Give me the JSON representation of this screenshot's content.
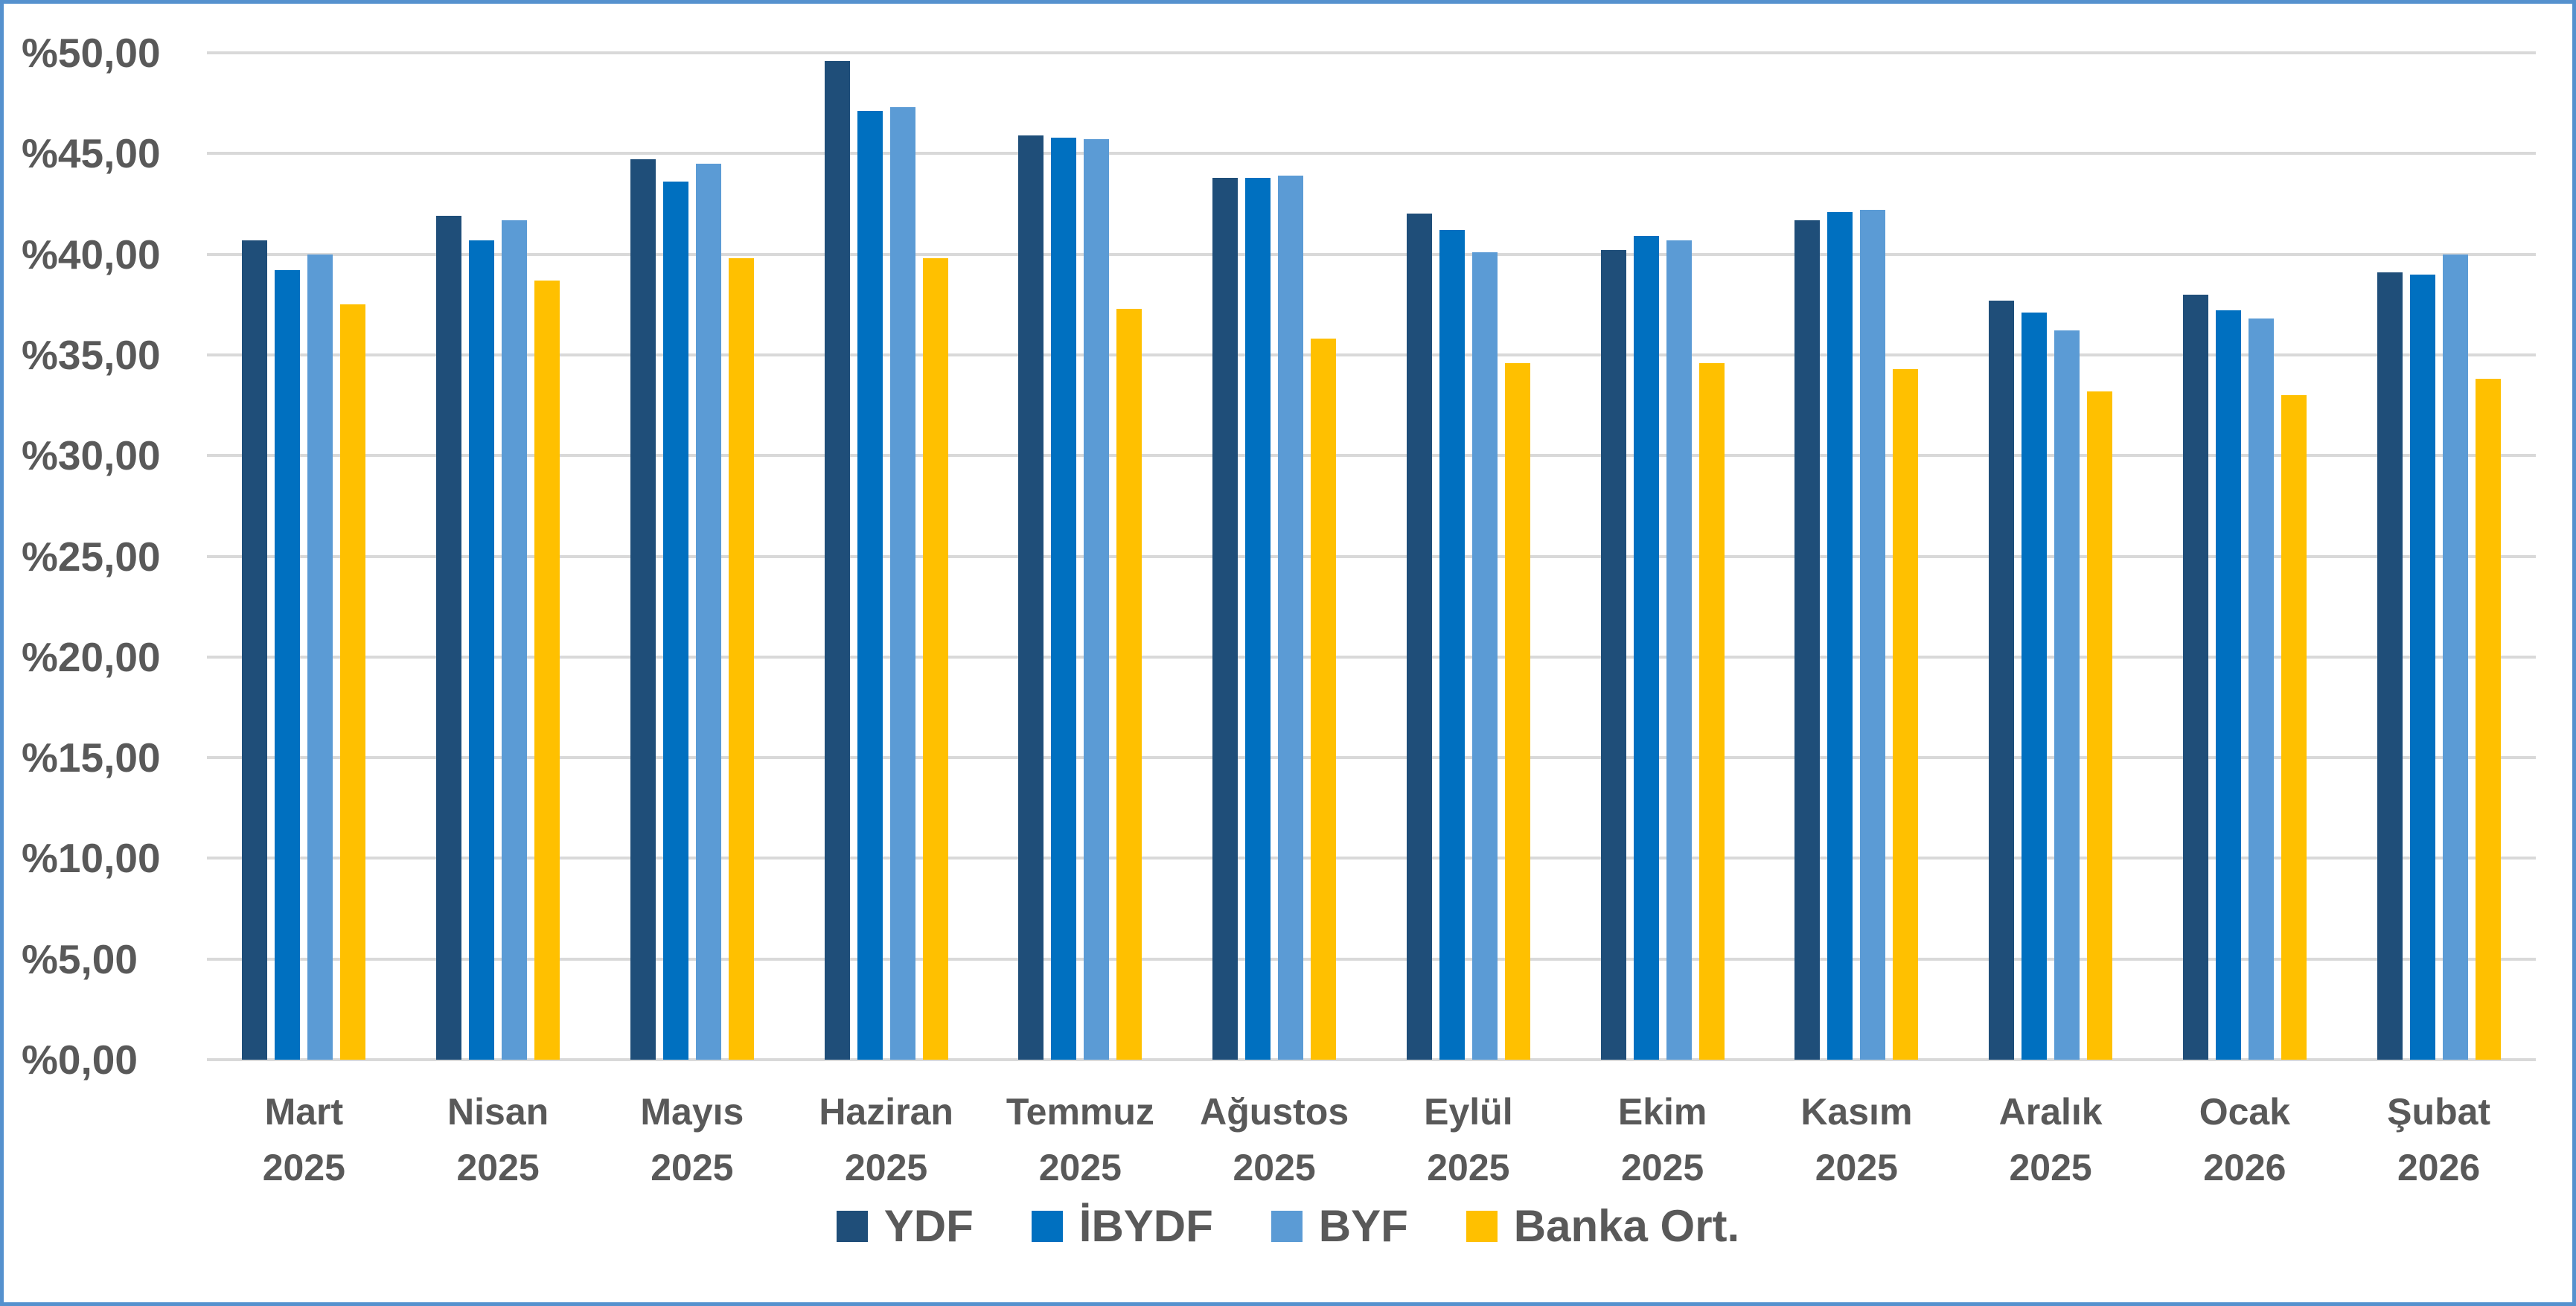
{
  "colors": {
    "frame_border": "#5591CE",
    "gridline": "#D9D9D9",
    "axis_text": "#595959"
  },
  "chart_data": {
    "type": "bar",
    "title": "",
    "xlabel": "",
    "ylabel": "",
    "grid": true,
    "legend_position": "bottom",
    "ylim": [
      0,
      50
    ],
    "ytick_step": 5,
    "ytick_labels_top_to_bottom": [
      "%50,00",
      "%45,00",
      "%40,00",
      "%35,00",
      "%30,00",
      "%25,00",
      "%20,00",
      "%15,00",
      "%10,00",
      "%5,00",
      "%0,00"
    ],
    "categories": [
      "Mart 2025",
      "Nisan 2025",
      "Mayıs 2025",
      "Haziran 2025",
      "Temmuz 2025",
      "Ağustos 2025",
      "Eylül 2025",
      "Ekim 2025",
      "Kasım 2025",
      "Aralık 2025",
      "Ocak 2026",
      "Şubat 2026"
    ],
    "category_lines": [
      [
        "Mart",
        "2025"
      ],
      [
        "Nisan",
        "2025"
      ],
      [
        "Mayıs",
        "2025"
      ],
      [
        "Haziran",
        "2025"
      ],
      [
        "Temmuz",
        "2025"
      ],
      [
        "Ağustos",
        "2025"
      ],
      [
        "Eylül",
        "2025"
      ],
      [
        "Ekim",
        "2025"
      ],
      [
        "Kasım",
        "2025"
      ],
      [
        "Aralık",
        "2025"
      ],
      [
        "Ocak",
        "2026"
      ],
      [
        "Şubat",
        "2026"
      ]
    ],
    "value_unit": "percent",
    "series": [
      {
        "name": "YDF",
        "color": "#1F4E79",
        "values": [
          40.7,
          41.9,
          44.7,
          49.6,
          45.9,
          43.8,
          42.0,
          40.2,
          41.7,
          37.7,
          38.0,
          39.1
        ]
      },
      {
        "name": "İBYDF",
        "color": "#0070C0",
        "values": [
          39.2,
          40.7,
          43.6,
          47.1,
          45.8,
          43.8,
          41.2,
          40.9,
          42.1,
          37.1,
          37.2,
          39.0
        ]
      },
      {
        "name": "BYF",
        "color": "#5B9BD5",
        "values": [
          40.0,
          41.7,
          44.5,
          47.3,
          45.7,
          43.9,
          40.1,
          40.7,
          42.2,
          36.2,
          36.8,
          40.0
        ]
      },
      {
        "name": "Banka Ort.",
        "color": "#FFC000",
        "values": [
          37.5,
          38.7,
          39.8,
          39.8,
          37.3,
          35.8,
          34.6,
          34.6,
          34.3,
          33.2,
          33.0,
          33.8
        ]
      }
    ]
  }
}
